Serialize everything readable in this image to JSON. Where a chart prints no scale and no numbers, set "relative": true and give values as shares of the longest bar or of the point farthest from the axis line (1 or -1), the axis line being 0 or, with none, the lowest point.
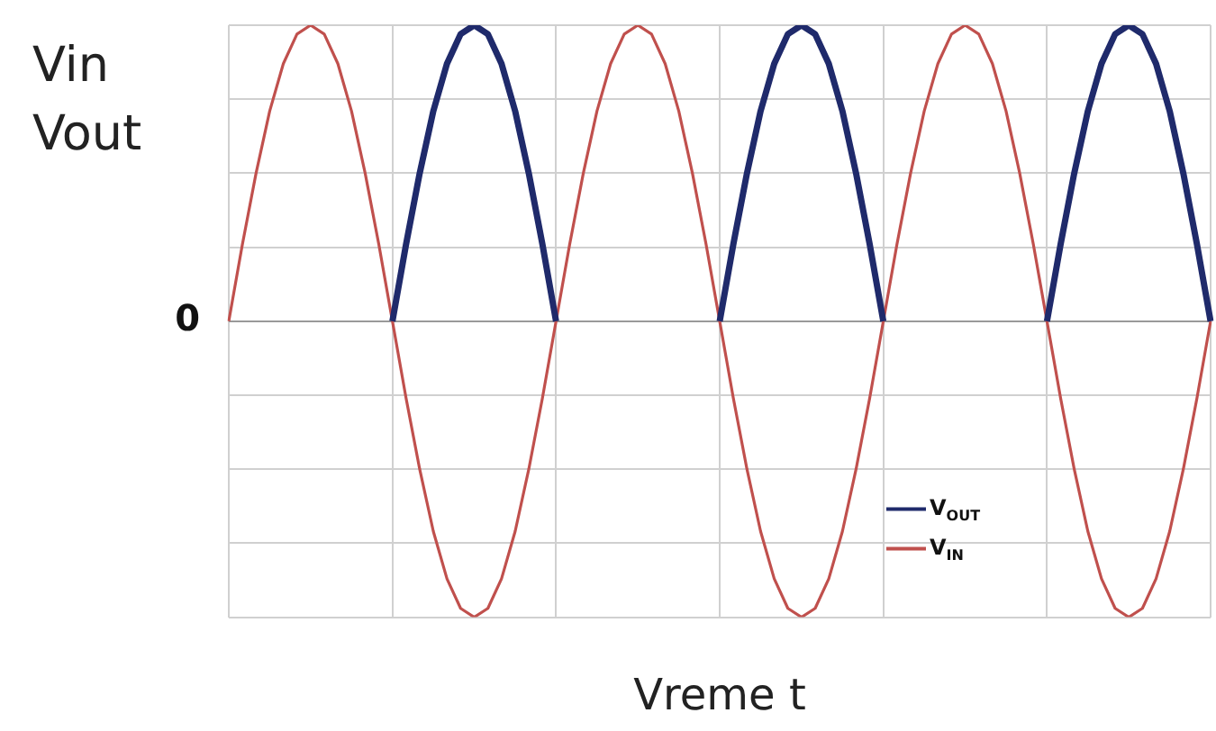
{
  "chart_data": {
    "type": "line",
    "relative": true,
    "xlabel": "Vreme t",
    "ylabel": "Vin Vout",
    "annotations": [
      "0"
    ],
    "grid": true,
    "legend": "bottom right",
    "marker": "none",
    "line_style": "solid",
    "categories": [
      null,
      null,
      null,
      null,
      null,
      null,
      null,
      null,
      null,
      null,
      null,
      null,
      null,
      null,
      null,
      null,
      null,
      null,
      null,
      null,
      null,
      null,
      null,
      null,
      null,
      null,
      null,
      null,
      null,
      null,
      null,
      null,
      null,
      null,
      null,
      null,
      null,
      null,
      null,
      null,
      null,
      null,
      null,
      null,
      null,
      null,
      null,
      null,
      null,
      null,
      null,
      null,
      null,
      null,
      null,
      null,
      null,
      null,
      null,
      null,
      null,
      null,
      null,
      null,
      null,
      null,
      null,
      null,
      null,
      null,
      null,
      null,
      null
    ],
    "series": [
      {
        "name": "V$_{OUT}$",
        "color": "#1f2a6b",
        "values": [
          null,
          null,
          null,
          null,
          null,
          null,
          null,
          null,
          null,
          null,
          null,
          null,
          0,
          0.26,
          0.5,
          0.71,
          0.87,
          0.97,
          1,
          0.97,
          0.87,
          0.71,
          0.5,
          0.26,
          0,
          null,
          null,
          null,
          null,
          null,
          null,
          null,
          null,
          null,
          null,
          null,
          0,
          0.26,
          0.5,
          0.71,
          0.87,
          0.97,
          1,
          0.97,
          0.87,
          0.71,
          0.5,
          0.26,
          0,
          null,
          null,
          null,
          null,
          null,
          null,
          null,
          null,
          null,
          null,
          null,
          0,
          0.26,
          0.5,
          0.71,
          0.87,
          0.97,
          1,
          0.97,
          0.87,
          0.71,
          0.5,
          0.26,
          0
        ]
      },
      {
        "name": "V$_{IN}$",
        "color": "#c0504d",
        "values": [
          0,
          0.26,
          0.5,
          0.71,
          0.87,
          0.97,
          1,
          0.97,
          0.87,
          0.71,
          0.5,
          0.26,
          0,
          -0.26,
          -0.5,
          -0.71,
          -0.87,
          -0.97,
          -1,
          -0.97,
          -0.87,
          -0.71,
          -0.5,
          -0.26,
          0,
          0.26,
          0.5,
          0.71,
          0.87,
          0.97,
          1,
          0.97,
          0.87,
          0.71,
          0.5,
          0.26,
          0,
          -0.26,
          -0.5,
          -0.71,
          -0.87,
          -0.97,
          -1,
          -0.97,
          -0.87,
          -0.71,
          -0.5,
          -0.26,
          0,
          0.26,
          0.5,
          0.71,
          0.87,
          0.97,
          1,
          0.97,
          0.87,
          0.71,
          0.5,
          0.26,
          0,
          -0.26,
          -0.5,
          -0.71,
          -0.87,
          -0.97,
          -1,
          -0.97,
          -0.87,
          -0.71,
          -0.5,
          -0.26,
          0
        ]
      }
    ]
  }
}
